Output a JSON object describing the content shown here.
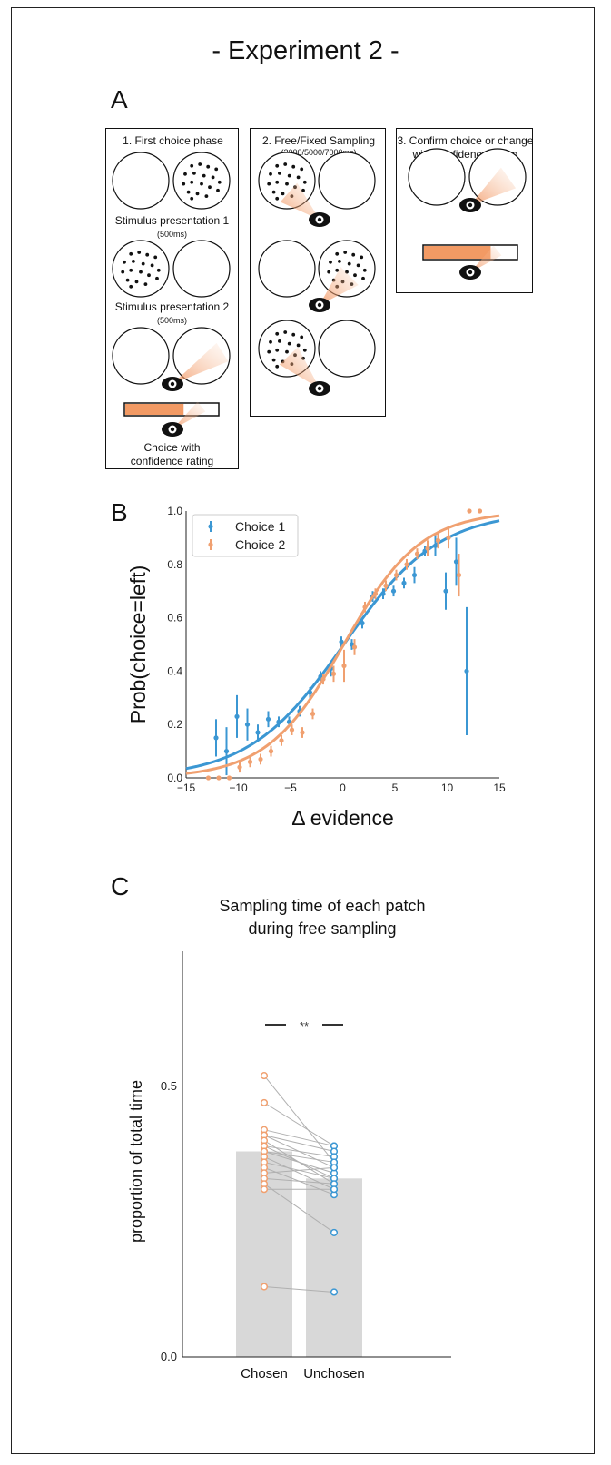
{
  "figure": {
    "title": "- Experiment 2 -",
    "panels": {
      "a": "A",
      "b": "B",
      "c": "C"
    }
  },
  "panel_a": {
    "box1": {
      "title": "1. First choice phase",
      "stim1_label": "Stimulus presentation 1",
      "stim1_time": "(500ms)",
      "stim2_label": "Stimulus presentation 2",
      "stim2_time": "(500ms)",
      "bottom_label_line1": "Choice with",
      "bottom_label_line2": "confidence rating"
    },
    "box2": {
      "title": "2. Free/Fixed Sampling",
      "subtitle": "(3000/5000/7000ms)"
    },
    "box3": {
      "title_line1": "3. Confirm choice or change",
      "title_line2": "with confidence rating"
    },
    "icons": [
      "eye-icon",
      "dot-patch-icon",
      "confidence-bar-icon"
    ],
    "colors": {
      "orange": "#f0a070",
      "bar_orange": "#f29a64"
    }
  },
  "chart_data": [
    {
      "type": "line",
      "panel": "B",
      "xlabel": "Δ evidence",
      "ylabel": "Prob(choice=left)",
      "xlim": [
        -15,
        15
      ],
      "ylim": [
        0,
        1
      ],
      "x_ticks": [
        "−15",
        "−10",
        "−5",
        "0",
        "5",
        "10",
        "15"
      ],
      "y_ticks": [
        "0.0",
        "0.2",
        "0.4",
        "0.6",
        "0.8",
        "1.0"
      ],
      "legend_position": "top-left",
      "series": [
        {
          "name": "Choice 1",
          "color": "#3b97d3",
          "fit": {
            "slope": 0.22,
            "midpoint": 0.1
          },
          "points": [
            {
              "x": -12,
              "y": 0.15,
              "err": 0.07
            },
            {
              "x": -11,
              "y": 0.1,
              "err": 0.09
            },
            {
              "x": -10,
              "y": 0.23,
              "err": 0.08
            },
            {
              "x": -9,
              "y": 0.2,
              "err": 0.06
            },
            {
              "x": -8,
              "y": 0.17,
              "err": 0.03
            },
            {
              "x": -7,
              "y": 0.22,
              "err": 0.03
            },
            {
              "x": -6,
              "y": 0.21,
              "err": 0.02
            },
            {
              "x": -5,
              "y": 0.21,
              "err": 0.02
            },
            {
              "x": -4,
              "y": 0.25,
              "err": 0.02
            },
            {
              "x": -3,
              "y": 0.32,
              "err": 0.02
            },
            {
              "x": -2,
              "y": 0.38,
              "err": 0.02
            },
            {
              "x": -1,
              "y": 0.41,
              "err": 0.03
            },
            {
              "x": 0,
              "y": 0.51,
              "err": 0.02
            },
            {
              "x": 1,
              "y": 0.5,
              "err": 0.02
            },
            {
              "x": 2,
              "y": 0.58,
              "err": 0.02
            },
            {
              "x": 3,
              "y": 0.68,
              "err": 0.02
            },
            {
              "x": 4,
              "y": 0.69,
              "err": 0.02
            },
            {
              "x": 5,
              "y": 0.7,
              "err": 0.02
            },
            {
              "x": 6,
              "y": 0.73,
              "err": 0.02
            },
            {
              "x": 7,
              "y": 0.76,
              "err": 0.03
            },
            {
              "x": 8,
              "y": 0.85,
              "err": 0.02
            },
            {
              "x": 9,
              "y": 0.87,
              "err": 0.04
            },
            {
              "x": 10,
              "y": 0.7,
              "err": 0.07
            },
            {
              "x": 11,
              "y": 0.81,
              "err": 0.09
            },
            {
              "x": 12,
              "y": 0.4,
              "err": 0.24
            }
          ]
        },
        {
          "name": "Choice 2",
          "color": "#f0a070",
          "fit": {
            "slope": 0.27,
            "midpoint": 0.1
          },
          "points": [
            {
              "x": -13,
              "y": 0.0
            },
            {
              "x": -12,
              "y": 0.0
            },
            {
              "x": -11,
              "y": 0.0
            },
            {
              "x": -10,
              "y": 0.04,
              "err": 0.02
            },
            {
              "x": -9,
              "y": 0.06,
              "err": 0.02
            },
            {
              "x": -8,
              "y": 0.07,
              "err": 0.02
            },
            {
              "x": -7,
              "y": 0.1,
              "err": 0.02
            },
            {
              "x": -6,
              "y": 0.14,
              "err": 0.02
            },
            {
              "x": -5,
              "y": 0.18,
              "err": 0.02
            },
            {
              "x": -4,
              "y": 0.17,
              "err": 0.02
            },
            {
              "x": -3,
              "y": 0.24,
              "err": 0.02
            },
            {
              "x": -2,
              "y": 0.37,
              "err": 0.02
            },
            {
              "x": -1,
              "y": 0.39,
              "err": 0.03
            },
            {
              "x": 0,
              "y": 0.42,
              "err": 0.06
            },
            {
              "x": 1,
              "y": 0.49,
              "err": 0.03
            },
            {
              "x": 2,
              "y": 0.64,
              "err": 0.02
            },
            {
              "x": 3,
              "y": 0.69,
              "err": 0.02
            },
            {
              "x": 4,
              "y": 0.72,
              "err": 0.02
            },
            {
              "x": 5,
              "y": 0.76,
              "err": 0.02
            },
            {
              "x": 6,
              "y": 0.8,
              "err": 0.02
            },
            {
              "x": 7,
              "y": 0.84,
              "err": 0.02
            },
            {
              "x": 8,
              "y": 0.86,
              "err": 0.03
            },
            {
              "x": 9,
              "y": 0.89,
              "err": 0.03
            },
            {
              "x": 10,
              "y": 0.9,
              "err": 0.04
            },
            {
              "x": 11,
              "y": 0.76,
              "err": 0.08
            },
            {
              "x": 12,
              "y": 1.0
            },
            {
              "x": 13,
              "y": 1.0
            }
          ]
        }
      ]
    },
    {
      "type": "bar",
      "panel": "C",
      "title_line1": "Sampling time of each patch",
      "title_line2": "during free sampling",
      "ylabel": "proportion of total time",
      "ylim": [
        0,
        0.75
      ],
      "y_ticks": [
        "0.0",
        "0.5"
      ],
      "categories": [
        "Chosen",
        "Unchosen"
      ],
      "values": [
        0.38,
        0.33
      ],
      "significance": "**",
      "bar_color": "#d8d8d8",
      "series_colors": [
        "#f0a070",
        "#3b97d3"
      ],
      "subjects": [
        [
          0.52,
          0.36
        ],
        [
          0.47,
          0.39
        ],
        [
          0.42,
          0.39
        ],
        [
          0.41,
          0.38
        ],
        [
          0.41,
          0.35
        ],
        [
          0.4,
          0.32
        ],
        [
          0.39,
          0.37
        ],
        [
          0.39,
          0.33
        ],
        [
          0.38,
          0.36
        ],
        [
          0.38,
          0.34
        ],
        [
          0.37,
          0.31
        ],
        [
          0.36,
          0.33
        ],
        [
          0.35,
          0.3
        ],
        [
          0.34,
          0.35
        ],
        [
          0.33,
          0.32
        ],
        [
          0.32,
          0.23
        ],
        [
          0.31,
          0.31
        ],
        [
          0.13,
          0.12
        ]
      ]
    }
  ]
}
